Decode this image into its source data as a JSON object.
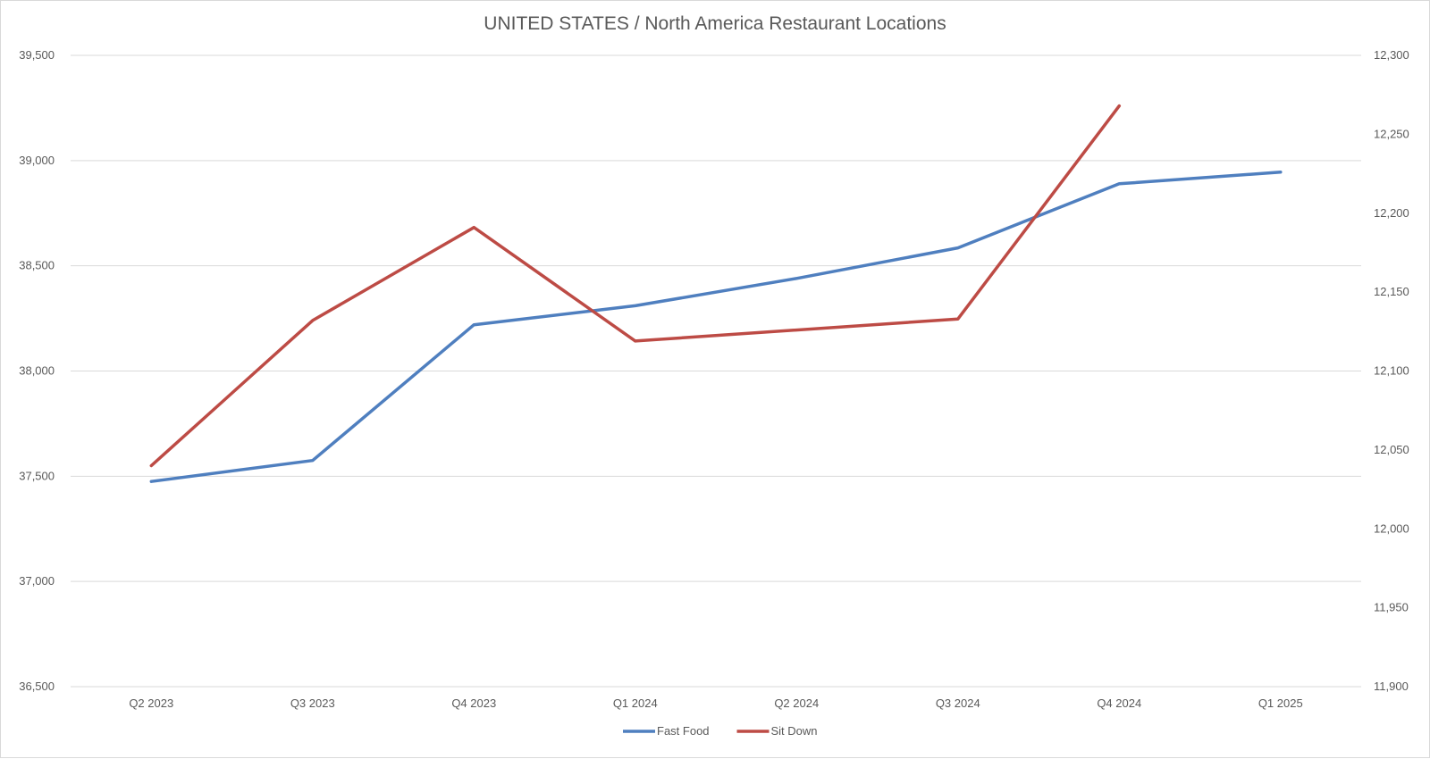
{
  "chart_data": {
    "type": "line",
    "title": "UNITED STATES / North America Restaurant Locations",
    "categories": [
      "Q2 2023",
      "Q3 2023",
      "Q4 2023",
      "Q1 2024",
      "Q2 2024",
      "Q3 2024",
      "Q4 2024",
      "Q1 2025"
    ],
    "y_left": {
      "ylim": [
        36500,
        39500
      ],
      "ticks": [
        36500,
        37000,
        37500,
        38000,
        38500,
        39000,
        39500
      ],
      "tick_labels": [
        "36,500",
        "37,000",
        "37,500",
        "38,000",
        "38,500",
        "39,000",
        "39,500"
      ]
    },
    "y_right": {
      "ylim": [
        11900,
        12300
      ],
      "ticks": [
        11900,
        11950,
        12000,
        12050,
        12100,
        12150,
        12200,
        12250,
        12300
      ],
      "tick_labels": [
        "11,900",
        "11,950",
        "12,000",
        "12,050",
        "12,100",
        "12,150",
        "12,200",
        "12,250",
        "12,300"
      ]
    },
    "series": [
      {
        "name": "Fast Food",
        "axis": "left",
        "color": "#4f7fbf",
        "values": [
          37475,
          37575,
          38220,
          38310,
          38440,
          38585,
          38890,
          38945
        ]
      },
      {
        "name": "Sit Down",
        "axis": "right",
        "color": "#bd4b45",
        "values": [
          12040,
          12132,
          12191,
          12119,
          null,
          12133,
          12268,
          null
        ]
      }
    ],
    "grid": true,
    "legend": "bottom"
  }
}
